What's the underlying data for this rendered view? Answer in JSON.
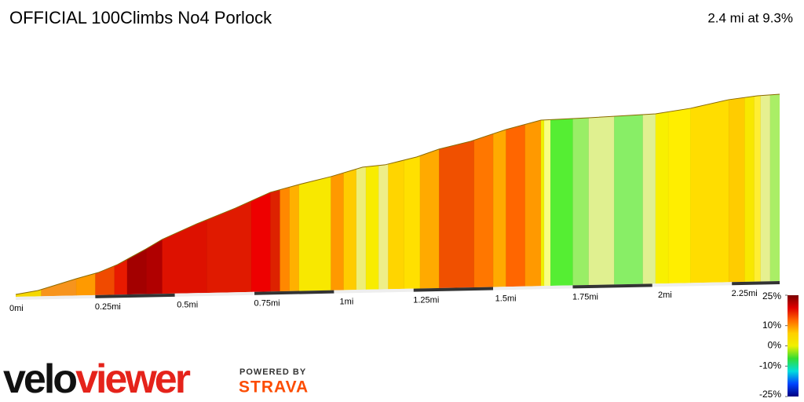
{
  "chart_data": {
    "type": "area",
    "title": "OFFICIAL 100Climbs No4 Porlock",
    "subtitle": "2.4 mi at 9.3%",
    "x": [
      0,
      0.07,
      0.19,
      0.26,
      0.32,
      0.36,
      0.41,
      0.46,
      0.57,
      0.69,
      0.8,
      0.89,
      0.99,
      1.09,
      1.16,
      1.26,
      1.33,
      1.43,
      1.54,
      1.65,
      1.8,
      1.89,
      2.01,
      2.12,
      2.24,
      2.33,
      2.4
    ],
    "values": [
      15,
      37,
      107,
      144,
      192,
      235,
      288,
      346,
      442,
      536,
      632,
      678,
      724,
      780,
      792,
      838,
      885,
      931,
      1001,
      1056,
      1065,
      1072,
      1081,
      1112,
      1162,
      1183,
      1190
    ],
    "xlim": [
      0,
      2.4
    ],
    "ylim": [
      0,
      1300
    ],
    "xticks": [
      {
        "value": 0,
        "label": "0mi"
      },
      {
        "value": 0.25,
        "label": "0.25mi"
      },
      {
        "value": 0.5,
        "label": "0.5mi"
      },
      {
        "value": 0.75,
        "label": "0.75mi"
      },
      {
        "value": 1,
        "label": "1mi"
      },
      {
        "value": 1.25,
        "label": "1.25mi"
      },
      {
        "value": 1.5,
        "label": "1.5mi"
      },
      {
        "value": 1.75,
        "label": "1.75mi"
      },
      {
        "value": 2,
        "label": "2mi"
      },
      {
        "value": 2.25,
        "label": "2.25mi"
      }
    ],
    "segment_bounds": [
      0,
      0.08,
      0.19,
      0.25,
      0.31,
      0.35,
      0.41,
      0.46,
      0.6,
      0.74,
      0.8,
      0.83,
      0.86,
      0.89,
      0.99,
      1.03,
      1.07,
      1.1,
      1.14,
      1.17,
      1.22,
      1.27,
      1.33,
      1.44,
      1.5,
      1.54,
      1.6,
      1.65,
      1.66,
      1.68,
      1.75,
      1.8,
      1.88,
      1.97,
      2.01,
      2.05,
      2.12,
      2.24,
      2.29,
      2.32,
      2.34,
      2.37,
      2.4
    ],
    "segment_colors": [
      "#f5d800",
      "#f7941d",
      "#ff9a00",
      "#f04a00",
      "#e81a00",
      "#a30000",
      "#b00000",
      "#dd1100",
      "#e01a00",
      "#ee0000",
      "#dd2200",
      "#ff8800",
      "#ffb000",
      "#f8e800",
      "#ff9900",
      "#ffcc00",
      "#eeee77",
      "#f8ec00",
      "#eeee88",
      "#ffd500",
      "#ffe000",
      "#ffaa00",
      "#f05000",
      "#ff7700",
      "#ffaa00",
      "#ff6600",
      "#ff9900",
      "#f0f000",
      "#f8ff80",
      "#55ee33",
      "#99ee66",
      "#e0f090",
      "#88ee66",
      "#e0f090",
      "#f8f000",
      "#ffee00",
      "#ffdd00",
      "#ffcc00",
      "#f8e800",
      "#ffee33",
      "#e6f090",
      "#aaee66"
    ],
    "colorbar": {
      "lim": [
        -25,
        25
      ],
      "ticks": [
        {
          "value": 25,
          "label": "25%"
        },
        {
          "value": 10,
          "label": "10%"
        },
        {
          "value": 0,
          "label": "0%"
        },
        {
          "value": -10,
          "label": "-10%"
        },
        {
          "value": -25,
          "label": "-25%"
        }
      ],
      "colors": [
        "#7a0000",
        "#e00000",
        "#ff6a00",
        "#ffd000",
        "#f0f000",
        "#33dd33",
        "#00dddd",
        "#0044ff",
        "#000080"
      ]
    }
  },
  "branding": {
    "logo": [
      "velo",
      "viewer"
    ],
    "powered_by": "POWERED BY",
    "strava": "STRAVA"
  }
}
